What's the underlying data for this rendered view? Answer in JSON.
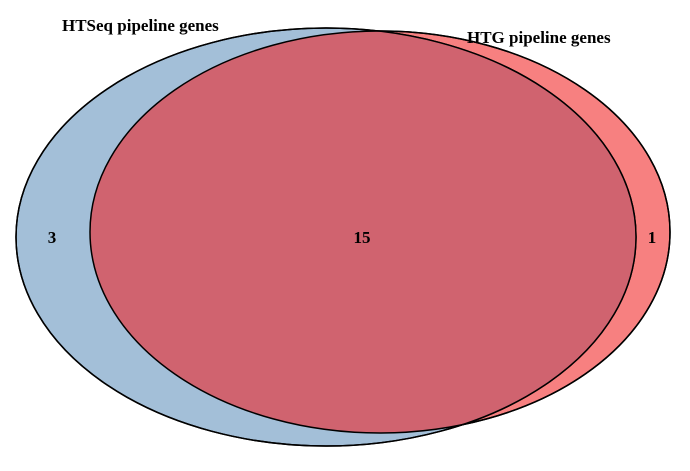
{
  "venn": {
    "sets": [
      {
        "label": "HTSeq pipeline genes",
        "color": "#a3bfd8"
      },
      {
        "label": "HTG pipeline genes",
        "color": "#f78080"
      }
    ],
    "overlap_color": "#d0636f",
    "outline_color": "#000000",
    "counts": {
      "htseq_only": "3",
      "both": "15",
      "htg_only": "1"
    }
  }
}
